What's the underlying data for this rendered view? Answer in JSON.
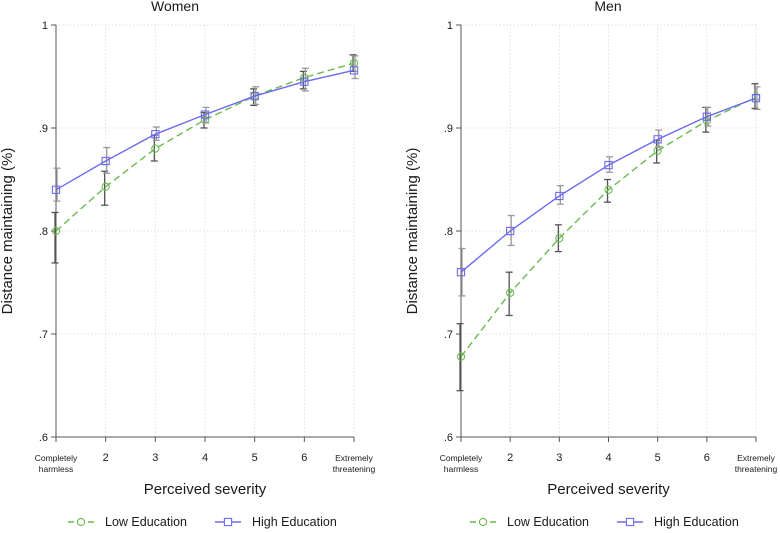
{
  "chart_data": [
    {
      "type": "line",
      "title": "Women",
      "xlabel": "Perceived severity",
      "ylabel": "Distance maintaining (%)",
      "categories": [
        "Completely harmless",
        "2",
        "3",
        "4",
        "5",
        "6",
        "Extremely threatening"
      ],
      "ylim": [
        0.6,
        1.0
      ],
      "yticks": [
        ".6",
        ".7",
        ".8",
        ".9",
        "1"
      ],
      "ytick_values": [
        0.6,
        0.7,
        0.8,
        0.9,
        1.0
      ],
      "grid": true,
      "series": [
        {
          "name": "Low Education",
          "color": "#6aba4f",
          "values": [
            0.8,
            0.843,
            0.88,
            0.908,
            0.931,
            0.949,
            0.963
          ],
          "ci_low": [
            0.769,
            0.825,
            0.868,
            0.9,
            0.922,
            0.938,
            0.955
          ],
          "ci_high": [
            0.818,
            0.858,
            0.893,
            0.915,
            0.938,
            0.955,
            0.971
          ]
        },
        {
          "name": "High Education",
          "color": "#6b6bf0",
          "values": [
            0.84,
            0.868,
            0.894,
            0.913,
            0.931,
            0.945,
            0.956
          ],
          "ci_low": [
            0.829,
            0.856,
            0.888,
            0.905,
            0.923,
            0.936,
            0.948
          ],
          "ci_high": [
            0.861,
            0.881,
            0.901,
            0.92,
            0.94,
            0.958,
            0.97
          ]
        }
      ]
    },
    {
      "type": "line",
      "title": "Men",
      "xlabel": "Perceived severity",
      "ylabel": "Distance maintaining (%)",
      "categories": [
        "Completely harmless",
        "2",
        "3",
        "4",
        "5",
        "6",
        "Extremely threatening"
      ],
      "ylim": [
        0.6,
        1.0
      ],
      "yticks": [
        ".6",
        ".7",
        ".8",
        ".9",
        "1"
      ],
      "ytick_values": [
        0.6,
        0.7,
        0.8,
        0.9,
        1.0
      ],
      "grid": true,
      "series": [
        {
          "name": "Low Education",
          "color": "#6aba4f",
          "values": [
            0.678,
            0.74,
            0.793,
            0.84,
            0.878,
            0.907,
            0.93
          ],
          "ci_low": [
            0.645,
            0.718,
            0.78,
            0.828,
            0.866,
            0.896,
            0.919
          ],
          "ci_high": [
            0.71,
            0.76,
            0.806,
            0.85,
            0.888,
            0.92,
            0.943
          ]
        },
        {
          "name": "High Education",
          "color": "#6b6bf0",
          "values": [
            0.76,
            0.8,
            0.834,
            0.864,
            0.889,
            0.911,
            0.929
          ],
          "ci_low": [
            0.737,
            0.786,
            0.826,
            0.857,
            0.882,
            0.902,
            0.918
          ],
          "ci_high": [
            0.783,
            0.815,
            0.844,
            0.872,
            0.898,
            0.92,
            0.94
          ]
        }
      ]
    }
  ],
  "legend": [
    {
      "label": "Low Education",
      "color": "#6aba4f",
      "marker": "circle",
      "dash": true
    },
    {
      "label": "High Education",
      "color": "#6b6bf0",
      "marker": "square",
      "dash": false
    }
  ]
}
